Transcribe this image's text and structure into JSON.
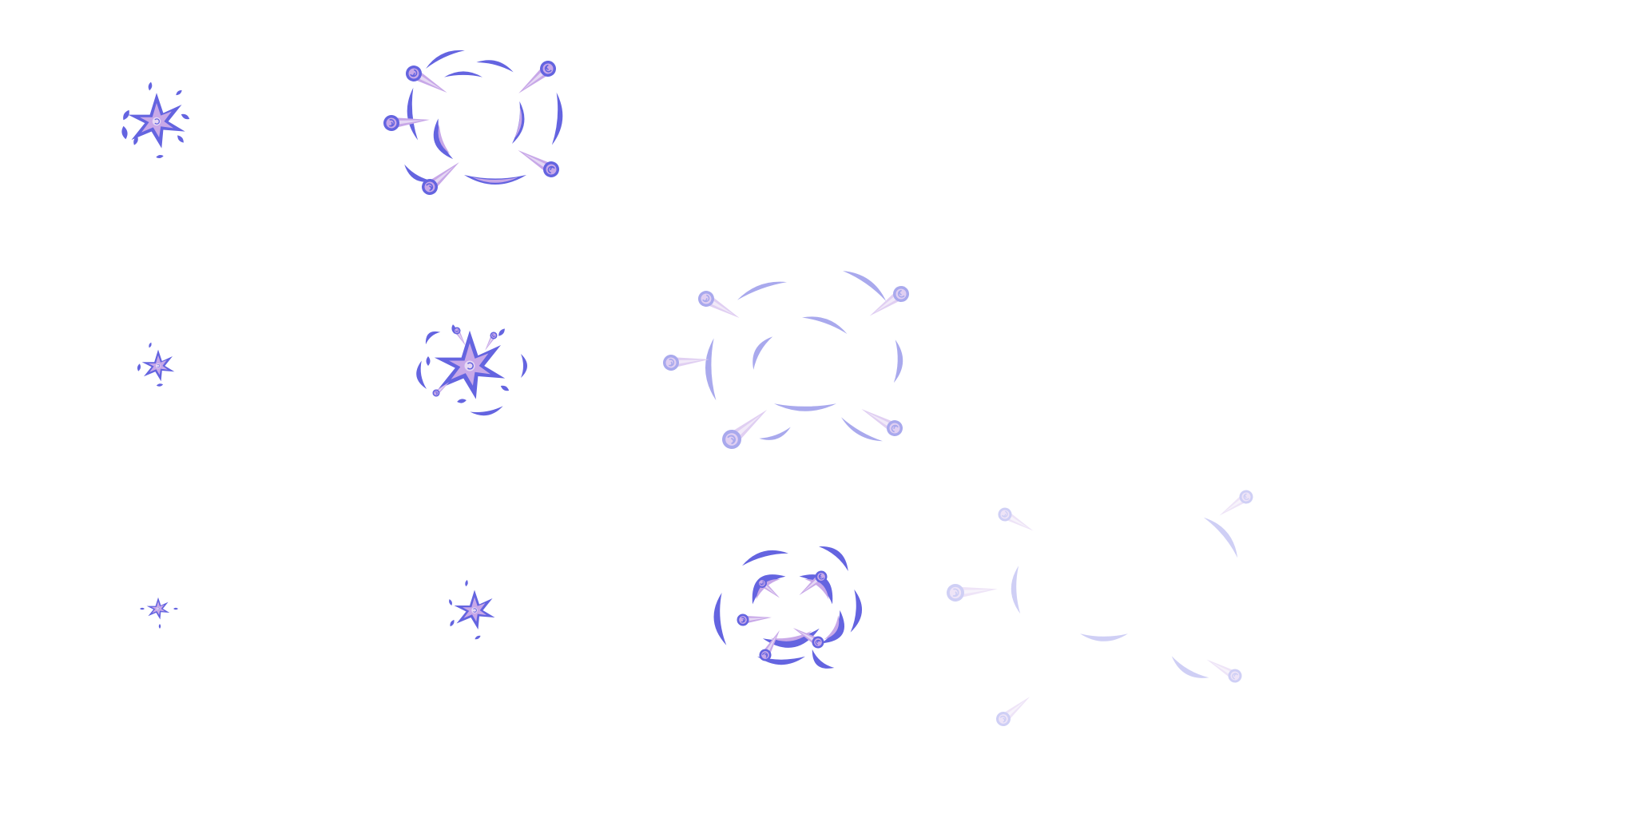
{
  "sprite_sheet": {
    "background": "#ffffff",
    "colors": {
      "main": "#6464e0",
      "light": "#c8a8e8",
      "pale": "#e6d8f4"
    },
    "frames": [
      {
        "name": "burst-frame-1",
        "row": 1,
        "col": 1,
        "kind": "star",
        "stage": "medium",
        "opacity": 1
      },
      {
        "name": "burst-frame-2",
        "row": 1,
        "col": 2,
        "kind": "ring",
        "stage": "expanding",
        "opacity": 1
      },
      {
        "name": "burst-frame-3",
        "row": 2,
        "col": 1,
        "kind": "star",
        "stage": "small",
        "opacity": 1
      },
      {
        "name": "burst-frame-4",
        "row": 2,
        "col": 2,
        "kind": "star",
        "stage": "large",
        "opacity": 1
      },
      {
        "name": "burst-frame-5",
        "row": 2,
        "col": 3,
        "kind": "ring",
        "stage": "wide",
        "opacity": 0.55
      },
      {
        "name": "burst-frame-6",
        "row": 3,
        "col": 1,
        "kind": "star",
        "stage": "tiny",
        "opacity": 1
      },
      {
        "name": "burst-frame-7",
        "row": 3,
        "col": 2,
        "kind": "star",
        "stage": "medium",
        "opacity": 1
      },
      {
        "name": "burst-frame-8",
        "row": 3,
        "col": 3,
        "kind": "cluster",
        "stage": "dense",
        "opacity": 1
      },
      {
        "name": "burst-frame-9",
        "row": 3,
        "col": 4,
        "kind": "ring",
        "stage": "fading",
        "opacity": 0.3
      }
    ]
  }
}
